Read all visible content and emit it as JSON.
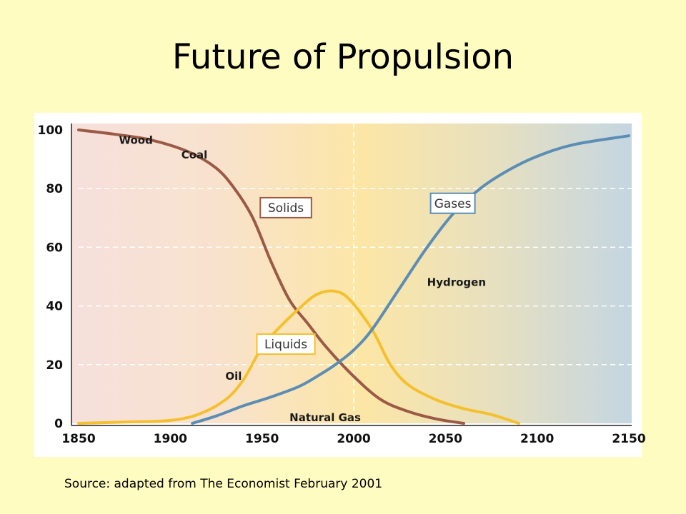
{
  "slide": {
    "title": "Future of Propulsion",
    "source": "Source: adapted from The Economist  February 2001"
  },
  "colors": {
    "slide_background": "#fffcc2",
    "solids": "#9b5a45",
    "liquids": "#f5c02e",
    "gases": "#5b8db5"
  },
  "chart_data": {
    "type": "line",
    "title": "",
    "xlabel": "",
    "ylabel": "",
    "xlim": [
      1850,
      2150
    ],
    "ylim": [
      0,
      100
    ],
    "x_ticks": [
      "1850",
      "1900",
      "1950",
      "2000",
      "2050",
      "2100",
      "2150"
    ],
    "y_ticks": [
      "0",
      "20",
      "40",
      "60",
      "80",
      "100"
    ],
    "grid": "horizontal dashed",
    "reference_line_x": 2000,
    "series": [
      {
        "name": "Solids",
        "color": "#9b5a45",
        "points": [
          [
            1850,
            100
          ],
          [
            1870,
            98.5
          ],
          [
            1890,
            96.5
          ],
          [
            1910,
            92.5
          ],
          [
            1925,
            87
          ],
          [
            1935,
            80
          ],
          [
            1945,
            70
          ],
          [
            1955,
            55
          ],
          [
            1965,
            42
          ],
          [
            1975,
            34
          ],
          [
            1985,
            26
          ],
          [
            2000,
            16
          ],
          [
            2015,
            8
          ],
          [
            2030,
            4
          ],
          [
            2045,
            1.5
          ],
          [
            2060,
            0
          ]
        ]
      },
      {
        "name": "Liquids",
        "color": "#f5c02e",
        "points": [
          [
            1850,
            0
          ],
          [
            1880,
            0.5
          ],
          [
            1900,
            1
          ],
          [
            1915,
            3
          ],
          [
            1930,
            8
          ],
          [
            1940,
            15
          ],
          [
            1950,
            26
          ],
          [
            1960,
            33
          ],
          [
            1970,
            39
          ],
          [
            1980,
            44
          ],
          [
            1990,
            45
          ],
          [
            1998,
            42
          ],
          [
            2010,
            32
          ],
          [
            2020,
            20
          ],
          [
            2030,
            13
          ],
          [
            2045,
            8
          ],
          [
            2060,
            5
          ],
          [
            2075,
            3
          ],
          [
            2090,
            0
          ]
        ]
      },
      {
        "name": "Gases",
        "color": "#5b8db5",
        "points": [
          [
            1912,
            0
          ],
          [
            1925,
            2.5
          ],
          [
            1940,
            6
          ],
          [
            1955,
            9
          ],
          [
            1970,
            12.5
          ],
          [
            1980,
            16
          ],
          [
            1990,
            20
          ],
          [
            2000,
            25
          ],
          [
            2010,
            32
          ],
          [
            2025,
            46
          ],
          [
            2040,
            60
          ],
          [
            2055,
            72
          ],
          [
            2070,
            80.5
          ],
          [
            2085,
            86.5
          ],
          [
            2100,
            91
          ],
          [
            2120,
            95
          ],
          [
            2150,
            98
          ]
        ]
      }
    ],
    "annotations": [
      {
        "text": "Wood",
        "x": 1872,
        "y": 96.5
      },
      {
        "text": "Coal",
        "x": 1906,
        "y": 91.5
      },
      {
        "text": "Oil",
        "x": 1930,
        "y": 16
      },
      {
        "text": "Natural Gas",
        "x": 1965,
        "y": 2
      },
      {
        "text": "Hydrogen",
        "x": 2040,
        "y": 48
      }
    ],
    "boxed_labels": [
      {
        "text": "Solids",
        "x": 1963,
        "y": 73.5,
        "color": "#9b5a45"
      },
      {
        "text": "Liquids",
        "x": 1963,
        "y": 27,
        "color": "#f5c02e"
      },
      {
        "text": "Gases",
        "x": 2054,
        "y": 75,
        "color": "#5b8db5"
      }
    ]
  }
}
